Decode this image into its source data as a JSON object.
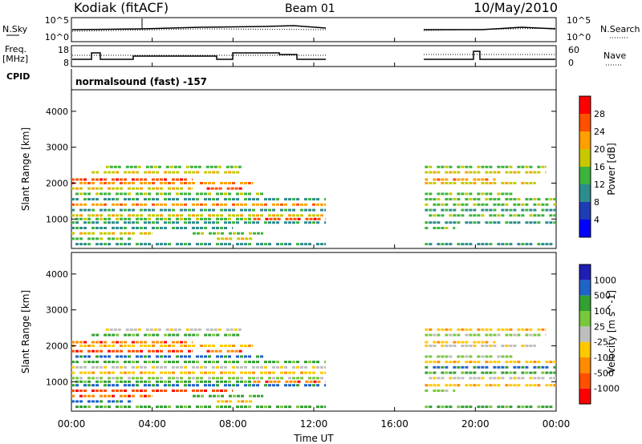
{
  "header": {
    "station": "Kodiak (fitACF)",
    "beam": "Beam 01",
    "date": "10/May/2010"
  },
  "panels": {
    "sky": {
      "left_label": "N.Sky",
      "right_label": "N.Search",
      "left_ticks": [
        "10^5",
        "10^0"
      ],
      "right_ticks": [
        "10^5",
        "10^0"
      ]
    },
    "freq": {
      "left_label_line1": "Freq.",
      "left_label_line2": "[MHz]",
      "right_label": "Nave",
      "left_ticks": [
        "18",
        "8"
      ],
      "right_ticks": [
        "60",
        "0"
      ]
    },
    "cpid": {
      "label": "CPID",
      "program": "normalsound (fast) -157"
    }
  },
  "axes": {
    "ylabel": "Slant Range [km]",
    "xlabel": "Time UT",
    "yticks": [
      "1000",
      "2000",
      "3000",
      "4000"
    ],
    "xticks": [
      "00:00",
      "04:00",
      "08:00",
      "12:00",
      "16:00",
      "20:00",
      "00:00"
    ]
  },
  "colorbars": {
    "power": {
      "label": "Power [dB]",
      "ticks": [
        "4",
        "8",
        "12",
        "16",
        "20",
        "24",
        "28"
      ],
      "colors": [
        "#0000ff",
        "#1e3cb4",
        "#2d8c8c",
        "#3cb43c",
        "#c8c800",
        "#ffa000",
        "#ff5000",
        "#ff0000"
      ]
    },
    "velocity": {
      "label": "Velocity [m s^-1]",
      "ticks": [
        "1000",
        "500",
        "100",
        "25",
        "-25",
        "-100",
        "-500",
        "-1000"
      ],
      "colors": [
        "#1e1eb4",
        "#1e64c8",
        "#32a032",
        "#78c83c",
        "#bebebe",
        "#ffc800",
        "#ff8c00",
        "#ff5000",
        "#ff0000"
      ]
    }
  },
  "chart_data": {
    "type": "heatmap",
    "title": "Kodiak (fitACF) Beam 01 10/May/2010",
    "xlabel": "Time UT",
    "ylabel": "Slant Range [km]",
    "xlim_hours": [
      0,
      24
    ],
    "ylim_km": [
      180,
      4600
    ],
    "data_gaps_hours": [
      [
        12.6,
        17.5
      ]
    ],
    "rows": [
      {
        "range_km": 300,
        "power": [
          [
            0.0,
            12.6,
            10
          ],
          [
            17.5,
            24.0,
            8
          ]
        ],
        "velocity": [
          [
            0.0,
            12.6,
            100
          ],
          [
            17.5,
            24.0,
            100
          ]
        ]
      },
      {
        "range_km": 450,
        "power": [
          [
            0.0,
            3.0,
            12
          ],
          [
            7.0,
            9.0,
            16
          ]
        ],
        "velocity": [
          [
            0.0,
            3.0,
            500
          ],
          [
            7.0,
            9.0,
            -100
          ]
        ]
      },
      {
        "range_km": 600,
        "power": [
          [
            0.0,
            4.0,
            16
          ],
          [
            6.0,
            9.5,
            12
          ]
        ],
        "velocity": [
          [
            0.0,
            4.0,
            -500
          ],
          [
            6.0,
            9.5,
            100
          ]
        ]
      },
      {
        "range_km": 750,
        "power": [
          [
            0.0,
            8.0,
            8
          ],
          [
            17.5,
            19.0,
            12
          ]
        ],
        "velocity": [
          [
            0.0,
            8.0,
            -1000
          ],
          [
            17.5,
            19.0,
            25
          ]
        ]
      },
      {
        "range_km": 900,
        "power": [
          [
            0.0,
            12.6,
            8
          ],
          [
            17.5,
            24.0,
            8
          ]
        ],
        "velocity": [
          [
            0.0,
            12.6,
            500
          ],
          [
            17.5,
            24.0,
            -100
          ]
        ]
      },
      {
        "range_km": 1000,
        "power": [
          [
            0.0,
            9.0,
            12
          ],
          [
            9.0,
            12.6,
            24
          ]
        ],
        "velocity": [
          [
            0.0,
            9.0,
            100
          ],
          [
            9.0,
            12.6,
            -500
          ]
        ]
      },
      {
        "range_km": 1100,
        "power": [
          [
            0.0,
            12.6,
            16
          ],
          [
            17.5,
            24.0,
            12
          ]
        ],
        "velocity": [
          [
            0.0,
            12.6,
            25
          ],
          [
            17.5,
            24.0,
            -25
          ]
        ]
      },
      {
        "range_km": 1250,
        "power": [
          [
            0.0,
            12.6,
            8
          ],
          [
            17.5,
            24.0,
            8
          ]
        ],
        "velocity": [
          [
            0.0,
            12.6,
            -100
          ],
          [
            17.5,
            24.0,
            100
          ]
        ]
      },
      {
        "range_km": 1400,
        "power": [
          [
            0.0,
            12.6,
            20
          ],
          [
            17.5,
            24.0,
            12
          ]
        ],
        "velocity": [
          [
            0.0,
            12.6,
            -25
          ],
          [
            17.5,
            24.0,
            500
          ]
        ]
      },
      {
        "range_km": 1550,
        "power": [
          [
            0.0,
            12.6,
            8
          ],
          [
            17.5,
            24.0,
            12
          ]
        ],
        "velocity": [
          [
            0.0,
            12.6,
            100
          ],
          [
            17.5,
            24.0,
            -100
          ]
        ]
      },
      {
        "range_km": 1700,
        "power": [
          [
            0.0,
            9.5,
            12
          ],
          [
            17.5,
            22.0,
            12
          ]
        ],
        "velocity": [
          [
            0.0,
            9.5,
            500
          ],
          [
            17.5,
            22.0,
            25
          ]
        ]
      },
      {
        "range_km": 1850,
        "power": [
          [
            0.0,
            6.0,
            16
          ],
          [
            6.5,
            8.5,
            24
          ]
        ],
        "velocity": [
          [
            0.0,
            6.0,
            -1000
          ],
          [
            6.5,
            8.5,
            -500
          ]
        ]
      },
      {
        "range_km": 2000,
        "power": [
          [
            0.0,
            9.0,
            20
          ],
          [
            17.5,
            23.0,
            16
          ]
        ],
        "velocity": [
          [
            0.0,
            9.0,
            -100
          ],
          [
            17.5,
            23.0,
            -25
          ]
        ]
      },
      {
        "range_km": 2100,
        "power": [
          [
            0.0,
            6.0,
            24
          ],
          [
            17.5,
            21.0,
            20
          ]
        ],
        "velocity": [
          [
            0.0,
            6.0,
            -500
          ],
          [
            17.5,
            21.0,
            -100
          ]
        ]
      },
      {
        "range_km": 2300,
        "power": [
          [
            1.0,
            8.5,
            16
          ],
          [
            17.5,
            23.5,
            16
          ]
        ],
        "velocity": [
          [
            1.0,
            8.5,
            100
          ],
          [
            17.5,
            23.5,
            25
          ]
        ]
      },
      {
        "range_km": 2450,
        "power": [
          [
            1.5,
            8.5,
            12
          ],
          [
            17.5,
            23.5,
            12
          ]
        ],
        "velocity": [
          [
            1.5,
            8.5,
            -25
          ],
          [
            17.5,
            23.5,
            -100
          ]
        ]
      }
    ]
  }
}
